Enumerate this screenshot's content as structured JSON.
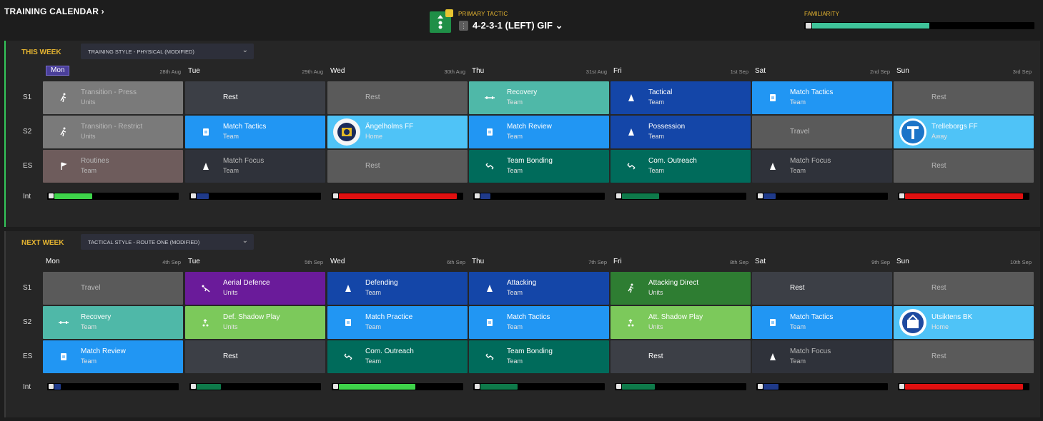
{
  "header": {
    "title": "TRAINING CALENDAR",
    "title_chevron": "›",
    "tactic_label": "PRIMARY TACTIC",
    "tactic_name": "4-2-3-1 (LEFT) GIF",
    "tactic_chevron": "⌄",
    "familiarity_label": "FAMILIARITY",
    "familiarity_level": 0.53
  },
  "row_labels": {
    "s1": "S1",
    "s2": "S2",
    "es": "ES",
    "int": "Int"
  },
  "weeks": [
    {
      "label": "THIS WEEK",
      "style": "TRAINING STYLE - PHYSICAL (MODIFIED)",
      "chevron": "⌄",
      "days": [
        {
          "name": "Mon",
          "date": "28th Aug",
          "today": true
        },
        {
          "name": "Tue",
          "date": "29th Aug"
        },
        {
          "name": "Wed",
          "date": "30th Aug"
        },
        {
          "name": "Thu",
          "date": "31st Aug"
        },
        {
          "name": "Fri",
          "date": "1st Sep"
        },
        {
          "name": "Sat",
          "date": "2nd Sep"
        },
        {
          "name": "Sun",
          "date": "3rd Sep"
        }
      ],
      "sessions": [
        [
          {
            "name": "Transition - Press",
            "sub": "Units",
            "color": "#7a7a7a",
            "icon": "running-icon",
            "dim": true
          },
          {
            "name": "Rest",
            "color": "#3c3f46",
            "icon": ""
          },
          {
            "name": "Rest",
            "color": "#5a5a5a",
            "icon": "",
            "dim": true
          },
          {
            "name": "Recovery",
            "sub": "Team",
            "color": "#4fb8a8",
            "icon": "dumbbell-icon"
          },
          {
            "name": "Tactical",
            "sub": "Team",
            "color": "#1446a8",
            "icon": "cone-icon"
          },
          {
            "name": "Match Tactics",
            "sub": "Team",
            "color": "#2196f3",
            "icon": "clipboard-icon"
          },
          {
            "name": "Rest",
            "color": "#5a5a5a",
            "icon": "",
            "dim": true
          }
        ],
        [
          {
            "name": "Transition - Restrict",
            "sub": "Units",
            "color": "#7a7a7a",
            "icon": "running-icon",
            "dim": true
          },
          {
            "name": "Match Tactics",
            "sub": "Team",
            "color": "#2196f3",
            "icon": "clipboard-icon"
          },
          {
            "name": "Ängelholms FF",
            "sub": "Home",
            "color": "#4fc3f7",
            "icon": "crest-angelholm"
          },
          {
            "name": "Match Review",
            "sub": "Team",
            "color": "#2196f3",
            "icon": "clipboard-icon"
          },
          {
            "name": "Possession",
            "sub": "Team",
            "color": "#1446a8",
            "icon": "cone-icon"
          },
          {
            "name": "Travel",
            "color": "#5a5a5a",
            "icon": "",
            "dim": true
          },
          {
            "name": "Trelleborgs FF",
            "sub": "Away",
            "color": "#4fc3f7",
            "icon": "crest-trelleborg"
          }
        ],
        [
          {
            "name": "Routines",
            "sub": "Team",
            "color": "#6e5c5c",
            "icon": "flag-icon",
            "dim": true
          },
          {
            "name": "Match Focus",
            "sub": "Team",
            "color": "#2f323a",
            "icon": "cone-icon",
            "dim": true
          },
          {
            "name": "Rest",
            "color": "#5a5a5a",
            "icon": "",
            "dim": true
          },
          {
            "name": "Team Bonding",
            "sub": "Team",
            "color": "#006b5b",
            "icon": "handshake-icon"
          },
          {
            "name": "Com. Outreach",
            "sub": "Team",
            "color": "#006b5b",
            "icon": "handshake-icon"
          },
          {
            "name": "Match Focus",
            "sub": "Team",
            "color": "#2f323a",
            "icon": "cone-icon",
            "dim": true
          },
          {
            "name": "Rest",
            "color": "#5a5a5a",
            "icon": "",
            "dim": true
          }
        ]
      ],
      "intensity": [
        {
          "level": 0.31,
          "color": "#3ed44a"
        },
        {
          "level": 0.1,
          "color": "#1f3a8a"
        },
        {
          "level": 0.96,
          "color": "#e01010"
        },
        {
          "level": 0.08,
          "color": "#1f3a8a"
        },
        {
          "level": 0.3,
          "color": "#0e7a4a"
        },
        {
          "level": 0.1,
          "color": "#1f3a8a"
        },
        {
          "level": 0.96,
          "color": "#e01010"
        }
      ]
    },
    {
      "label": "NEXT WEEK",
      "style": "TACTICAL STYLE - ROUTE ONE (MODIFIED)",
      "chevron": "⌄",
      "days": [
        {
          "name": "Mon",
          "date": "4th Sep"
        },
        {
          "name": "Tue",
          "date": "5th Sep"
        },
        {
          "name": "Wed",
          "date": "6th Sep"
        },
        {
          "name": "Thu",
          "date": "7th Sep"
        },
        {
          "name": "Fri",
          "date": "8th Sep"
        },
        {
          "name": "Sat",
          "date": "9th Sep"
        },
        {
          "name": "Sun",
          "date": "10th Sep"
        }
      ],
      "sessions": [
        [
          {
            "name": "Travel",
            "color": "#5a5a5a",
            "icon": "",
            "dim": true
          },
          {
            "name": "Aerial Defence",
            "sub": "Units",
            "color": "#6a1b9a",
            "icon": "header-icon"
          },
          {
            "name": "Defending",
            "sub": "Team",
            "color": "#1446a8",
            "icon": "cone-icon"
          },
          {
            "name": "Attacking",
            "sub": "Team",
            "color": "#1446a8",
            "icon": "cone-icon"
          },
          {
            "name": "Attacking Direct",
            "sub": "Units",
            "color": "#2e7d32",
            "icon": "running-icon"
          },
          {
            "name": "Rest",
            "color": "#3c3f46",
            "icon": ""
          },
          {
            "name": "Rest",
            "color": "#5a5a5a",
            "icon": "",
            "dim": true
          }
        ],
        [
          {
            "name": "Recovery",
            "sub": "Team",
            "color": "#4fb8a8",
            "icon": "dumbbell-icon"
          },
          {
            "name": "Def. Shadow Play",
            "sub": "Units",
            "color": "#7cc95b",
            "icon": "shadow-icon"
          },
          {
            "name": "Match Practice",
            "sub": "Team",
            "color": "#2196f3",
            "icon": "clipboard-icon"
          },
          {
            "name": "Match Tactics",
            "sub": "Team",
            "color": "#2196f3",
            "icon": "clipboard-icon"
          },
          {
            "name": "Att. Shadow Play",
            "sub": "Units",
            "color": "#7cc95b",
            "icon": "shadow-icon"
          },
          {
            "name": "Match Tactics",
            "sub": "Team",
            "color": "#2196f3",
            "icon": "clipboard-icon"
          },
          {
            "name": "Utsiktens BK",
            "sub": "Home",
            "color": "#4fc3f7",
            "icon": "crest-utsiktens"
          }
        ],
        [
          {
            "name": "Match Review",
            "sub": "Team",
            "color": "#2196f3",
            "icon": "clipboard-icon"
          },
          {
            "name": "Rest",
            "color": "#3c3f46",
            "icon": ""
          },
          {
            "name": "Com. Outreach",
            "sub": "Team",
            "color": "#006b5b",
            "icon": "handshake-icon"
          },
          {
            "name": "Team Bonding",
            "sub": "Team",
            "color": "#006b5b",
            "icon": "handshake-icon"
          },
          {
            "name": "Rest",
            "color": "#3c3f46",
            "icon": ""
          },
          {
            "name": "Match Focus",
            "sub": "Team",
            "color": "#2f323a",
            "icon": "cone-icon",
            "dim": true
          },
          {
            "name": "Rest",
            "color": "#5a5a5a",
            "icon": "",
            "dim": true
          }
        ]
      ],
      "intensity": [
        {
          "level": 0.05,
          "color": "#1f3a8a"
        },
        {
          "level": 0.2,
          "color": "#0e7a4a"
        },
        {
          "level": 0.62,
          "color": "#3ed44a"
        },
        {
          "level": 0.3,
          "color": "#0e7a4a"
        },
        {
          "level": 0.27,
          "color": "#0e7a4a"
        },
        {
          "level": 0.12,
          "color": "#1f3a8a"
        },
        {
          "level": 0.96,
          "color": "#e01010"
        }
      ]
    }
  ]
}
